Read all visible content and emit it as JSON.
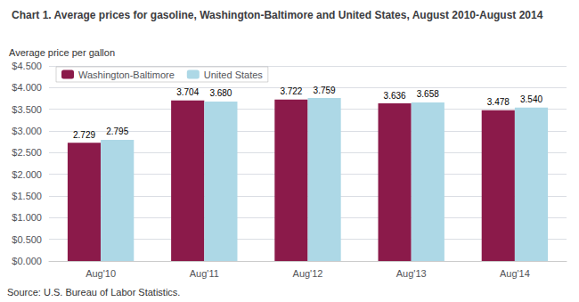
{
  "chart_data": {
    "type": "bar",
    "title": "Chart 1. Average prices for gasoline, Washington-Baltimore and United States, August 2010-August 2014",
    "ylabel": "Average price per gallon",
    "annotations": [
      "Source: U.S. Bureau of Labor Statistics."
    ],
    "categories": [
      "Aug'10",
      "Aug'11",
      "Aug'12",
      "Aug'13",
      "Aug'14"
    ],
    "series": [
      {
        "name": "Washington-Baltimore",
        "color": "#8B1A4A",
        "values": [
          2.729,
          3.704,
          3.722,
          3.636,
          3.478
        ],
        "value_labels": [
          "2.729",
          "3.704",
          "3.722",
          "3.636",
          "3.478"
        ]
      },
      {
        "name": "United States",
        "color": "#ADD8E6",
        "values": [
          2.795,
          3.68,
          3.759,
          3.658,
          3.54
        ],
        "value_labels": [
          "2.795",
          "3.680",
          "3.759",
          "3.658",
          "3.540"
        ]
      }
    ],
    "ylim": [
      0,
      4.5
    ],
    "yticks": [
      {
        "value": 0.0,
        "label": "$0.000"
      },
      {
        "value": 0.5,
        "label": "$0.500"
      },
      {
        "value": 1.0,
        "label": "$1.000"
      },
      {
        "value": 1.5,
        "label": "$1.500"
      },
      {
        "value": 2.0,
        "label": "$2.000"
      },
      {
        "value": 2.5,
        "label": "$2.500"
      },
      {
        "value": 3.0,
        "label": "$3.000"
      },
      {
        "value": 3.5,
        "label": "$3.500"
      },
      {
        "value": 4.0,
        "label": "$4.000"
      },
      {
        "value": 4.5,
        "label": "$4.500"
      }
    ],
    "grid": true,
    "data_labels": true,
    "legend": "upper left"
  }
}
